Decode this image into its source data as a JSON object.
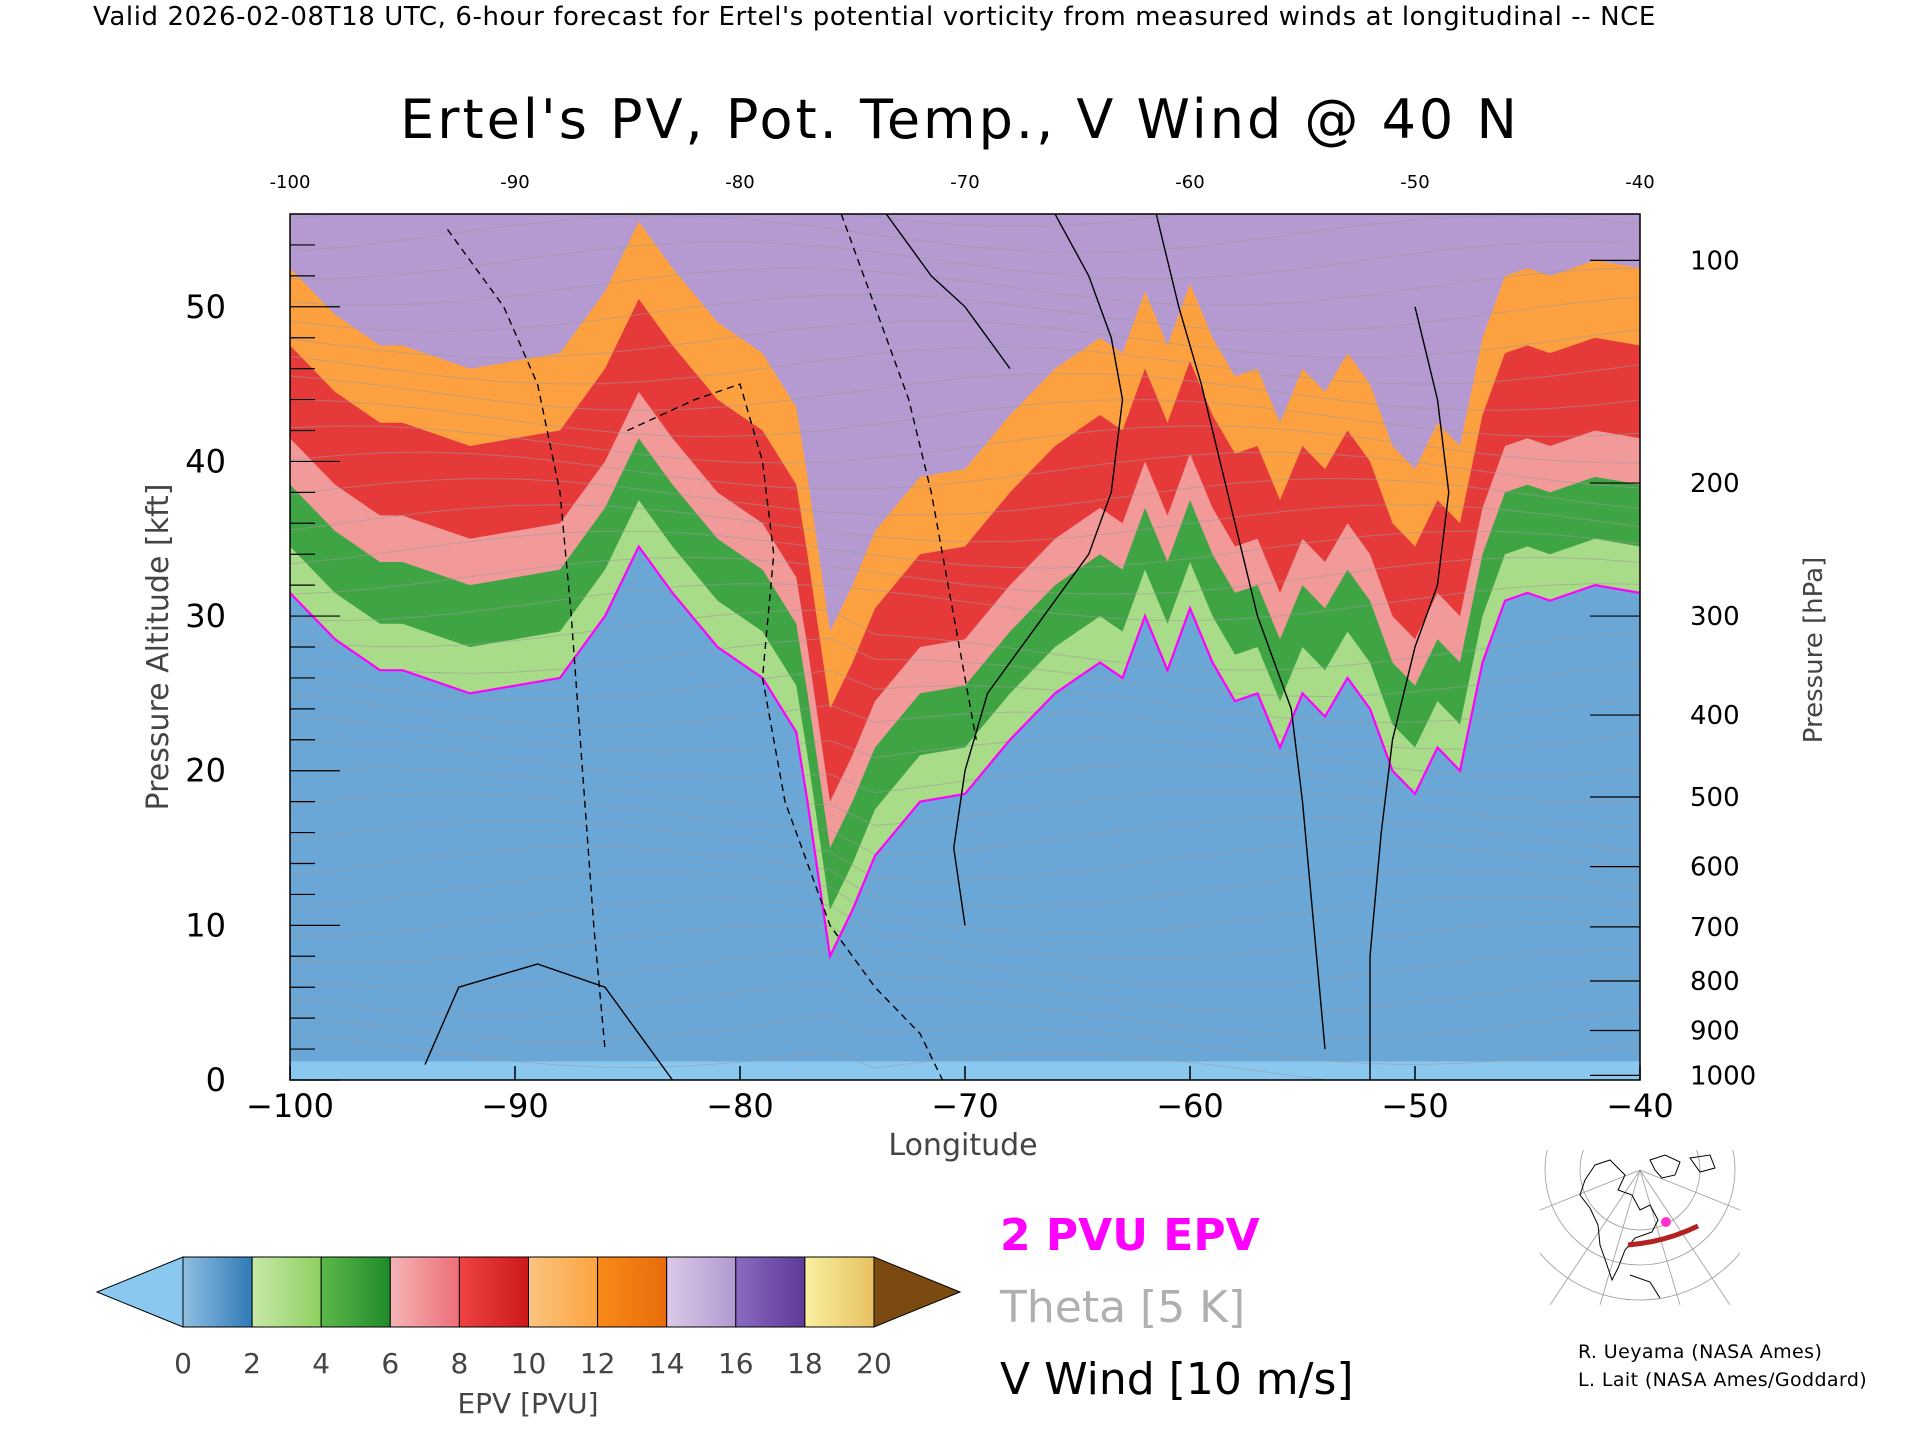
{
  "header": {
    "valid_line": "Valid 2026-02-08T18 UTC, 6-hour forecast for Ertel's potential vorticity from measured winds at longitudinal -- NCE"
  },
  "chart_data": {
    "type": "heatmap",
    "title": "Ertel's PV, Pot. Temp., V Wind @ 40 N",
    "xlabel": "Longitude",
    "ylabel_left": "Pressure Altitude [kft]",
    "ylabel_right": "Pressure [hPa]",
    "xlim": [
      -100,
      -40
    ],
    "ylim": [
      0,
      56
    ],
    "x_ticks": [
      "-100",
      "-90",
      "-80",
      "-70",
      "-60",
      "-50",
      "-40"
    ],
    "top_x_ticks": [
      "-100",
      "-90",
      "-80",
      "-70",
      "-60",
      "-50",
      "-40"
    ],
    "y_ticks": [
      "0",
      "10",
      "20",
      "30",
      "40",
      "50"
    ],
    "pressure_ticks": [
      {
        "label": "100",
        "kft": 53.0
      },
      {
        "label": "200",
        "kft": 38.6
      },
      {
        "label": "300",
        "kft": 30.0
      },
      {
        "label": "400",
        "kft": 23.6
      },
      {
        "label": "500",
        "kft": 18.3
      },
      {
        "label": "600",
        "kft": 13.8
      },
      {
        "label": "700",
        "kft": 9.9
      },
      {
        "label": "800",
        "kft": 6.4
      },
      {
        "label": "900",
        "kft": 3.2
      },
      {
        "label": "1000",
        "kft": 0.3
      }
    ],
    "colorbar": {
      "label": "EPV [PVU]",
      "tick_labels": [
        "0",
        "2",
        "4",
        "6",
        "8",
        "10",
        "12",
        "14",
        "16",
        "18",
        "20"
      ],
      "under_color": "#8bc8f0",
      "over_color": "#7a4a10",
      "bins": [
        {
          "from": 0,
          "to": 2,
          "colors": [
            "#8fbfe0",
            "#2f7ab8"
          ]
        },
        {
          "from": 2,
          "to": 4,
          "colors": [
            "#c8e8a8",
            "#8ed060"
          ]
        },
        {
          "from": 4,
          "to": 6,
          "colors": [
            "#5cb84a",
            "#1f8a2a"
          ]
        },
        {
          "from": 6,
          "to": 8,
          "colors": [
            "#f3b5b5",
            "#ee6e78"
          ]
        },
        {
          "from": 8,
          "to": 10,
          "colors": [
            "#ee4444",
            "#cc1818"
          ]
        },
        {
          "from": 10,
          "to": 12,
          "colors": [
            "#fcc480",
            "#fca440"
          ]
        },
        {
          "from": 12,
          "to": 14,
          "colors": [
            "#f88a18",
            "#e86c0a"
          ]
        },
        {
          "from": 14,
          "to": 16,
          "colors": [
            "#dcc8e8",
            "#b09ad0"
          ]
        },
        {
          "from": 16,
          "to": 18,
          "colors": [
            "#8a6ac0",
            "#5e3a98"
          ]
        },
        {
          "from": 18,
          "to": 20,
          "colors": [
            "#f8f0a0",
            "#e8c060"
          ]
        }
      ]
    },
    "legend": [
      {
        "label": "2 PVU EPV",
        "color": "#ff00ff"
      },
      {
        "label": "Theta [5 K]",
        "color": "#b0b0b0"
      },
      {
        "label": "V Wind [10 m/s]",
        "color": "#000000"
      }
    ],
    "tropopause_2pvu": {
      "lon": [
        -100,
        -98,
        -96,
        -95,
        -92,
        -88,
        -86,
        -84.5,
        -83,
        -81,
        -79,
        -77.5,
        -77,
        -76,
        -75,
        -74,
        -72,
        -70,
        -68,
        -66,
        -64,
        -63,
        -62,
        -61,
        -60,
        -59,
        -58,
        -57,
        -56,
        -55,
        -54,
        -53,
        -52,
        -51,
        -50,
        -49,
        -48,
        -47,
        -46,
        -45,
        -44,
        -42,
        -40
      ],
      "kft": [
        31.5,
        28.5,
        26.5,
        26.5,
        25.0,
        26.0,
        30.0,
        34.5,
        31.5,
        28.0,
        26.0,
        22.5,
        18.0,
        8.0,
        11.0,
        14.5,
        18.0,
        18.5,
        22.0,
        25.0,
        27.0,
        26.0,
        30.0,
        26.5,
        30.5,
        27.0,
        24.5,
        25.0,
        21.5,
        25.0,
        23.5,
        26.0,
        24.0,
        20.0,
        18.5,
        21.5,
        20.0,
        27.0,
        31.0,
        31.5,
        31.0,
        32.0,
        31.5
      ]
    },
    "wind_zero_contours": [
      {
        "lon": [
          -73.5,
          -71.5,
          -70.0,
          -69.0,
          -68.0
        ],
        "kft": [
          56,
          52,
          50,
          48,
          46
        ]
      },
      {
        "lon": [
          -66.0,
          -64.5,
          -63.5,
          -63.0,
          -63.5,
          -64.5,
          -67.0,
          -69.0,
          -70.0,
          -70.5,
          -70.0
        ],
        "kft": [
          56,
          52,
          48,
          44,
          38,
          34,
          29,
          25,
          20,
          15,
          10
        ]
      },
      {
        "lon": [
          -61.5,
          -60.5,
          -59.5,
          -58.0,
          -57.0,
          -55.5,
          -55.0,
          -54.5,
          -54.0
        ],
        "kft": [
          56,
          50,
          45,
          36,
          30,
          24,
          18,
          10,
          2
        ]
      },
      {
        "lon": [
          -50.0,
          -49.0,
          -48.5,
          -49.0,
          -50.0,
          -51.0,
          -51.5,
          -52.0,
          -52.0
        ],
        "kft": [
          50,
          44,
          38,
          32,
          28,
          22,
          16,
          8,
          0
        ]
      },
      {
        "lon": [
          -94.0,
          -92.5,
          -89.0,
          -86.0,
          -85.0,
          -84.0,
          -83.0
        ],
        "kft": [
          1,
          6,
          7.5,
          6,
          4,
          2,
          0
        ]
      }
    ],
    "wind_dashed_contours": [
      {
        "lon": [
          -93.0,
          -90.5,
          -89.0,
          -88.0,
          -87.5,
          -87.0,
          -86.5,
          -86.0
        ],
        "kft": [
          55,
          50,
          45,
          38,
          30,
          20,
          10,
          2
        ]
      },
      {
        "lon": [
          -85.0,
          -82.0,
          -80.0,
          -79.0,
          -78.5,
          -79.0,
          -78.0,
          -76.0,
          -74.0,
          -72.0,
          -71.0
        ],
        "kft": [
          42,
          44,
          45,
          40,
          34,
          26,
          18,
          10,
          6,
          3,
          0
        ]
      },
      {
        "lon": [
          -75.5,
          -74.0,
          -72.5,
          -71.5,
          -70.5,
          -69.5
        ],
        "kft": [
          56,
          50,
          44,
          38,
          30,
          22
        ]
      }
    ],
    "theta_levels_count_note": "isentropes every 5 K"
  },
  "locator_map": {
    "label": "location map"
  },
  "credits": [
    "R. Ueyama (NASA Ames)",
    "L. Lait (NASA Ames/Goddard)"
  ]
}
